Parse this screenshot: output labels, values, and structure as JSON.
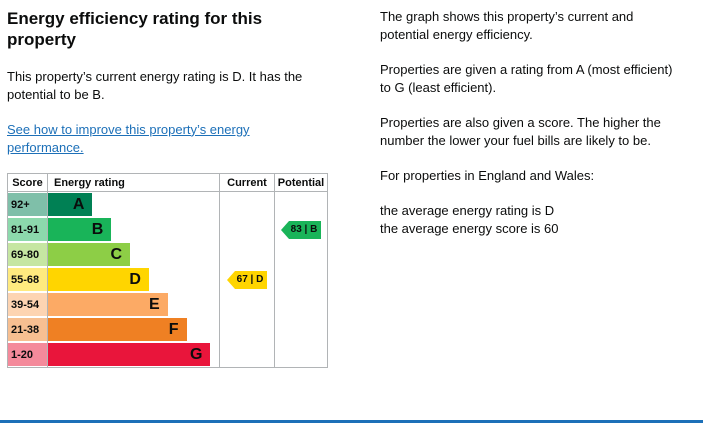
{
  "left": {
    "title": "Energy efficiency rating for this property",
    "intro": "This property’s current energy rating is D. It has the potential to be B.",
    "improve_link": "See how to improve this property’s energy performance."
  },
  "right": {
    "p1": "The graph shows this property’s current and potential energy efficiency.",
    "p2": "Properties are given a rating from A (most efficient) to G (least efficient).",
    "p3": "Properties are also given a score. The higher the number the lower your fuel bills are likely to be.",
    "p4": "For properties in England and Wales:",
    "p5_line1": "the average energy rating is D",
    "p5_line2": "the average energy score is 60"
  },
  "chart_data": {
    "type": "bar",
    "title": "Energy efficiency rating",
    "headers": [
      "Score",
      "Energy rating",
      "Current",
      "Potential"
    ],
    "bands": [
      {
        "score": "92+",
        "letter": "A",
        "color": "#008054",
        "tint": "#7fbfa9",
        "width_pct": 26
      },
      {
        "score": "81-91",
        "letter": "B",
        "color": "#19b459",
        "tint": "#8cd9ac",
        "width_pct": 37
      },
      {
        "score": "69-80",
        "letter": "C",
        "color": "#8dce46",
        "tint": "#c6e6a2",
        "width_pct": 48
      },
      {
        "score": "55-68",
        "letter": "D",
        "color": "#ffd500",
        "tint": "#ffea7f",
        "width_pct": 59
      },
      {
        "score": "39-54",
        "letter": "E",
        "color": "#fcaa65",
        "tint": "#fdd4b2",
        "width_pct": 70
      },
      {
        "score": "21-38",
        "letter": "F",
        "color": "#ef8023",
        "tint": "#f7bf91",
        "width_pct": 81
      },
      {
        "score": "1-20",
        "letter": "G",
        "color": "#e9153b",
        "tint": "#f48a9b",
        "width_pct": 95
      }
    ],
    "current": {
      "score": 67,
      "band": "D",
      "label": "67 | D",
      "color": "#ffd500",
      "row": 3
    },
    "potential": {
      "score": 83,
      "band": "B",
      "label": "83 | B",
      "color": "#19b459",
      "row": 1
    }
  },
  "colors": {
    "link": "#1d70b8",
    "divider": "#1d70b8",
    "text": "#0b0c0c",
    "chart_border": "#b1b4b6"
  }
}
